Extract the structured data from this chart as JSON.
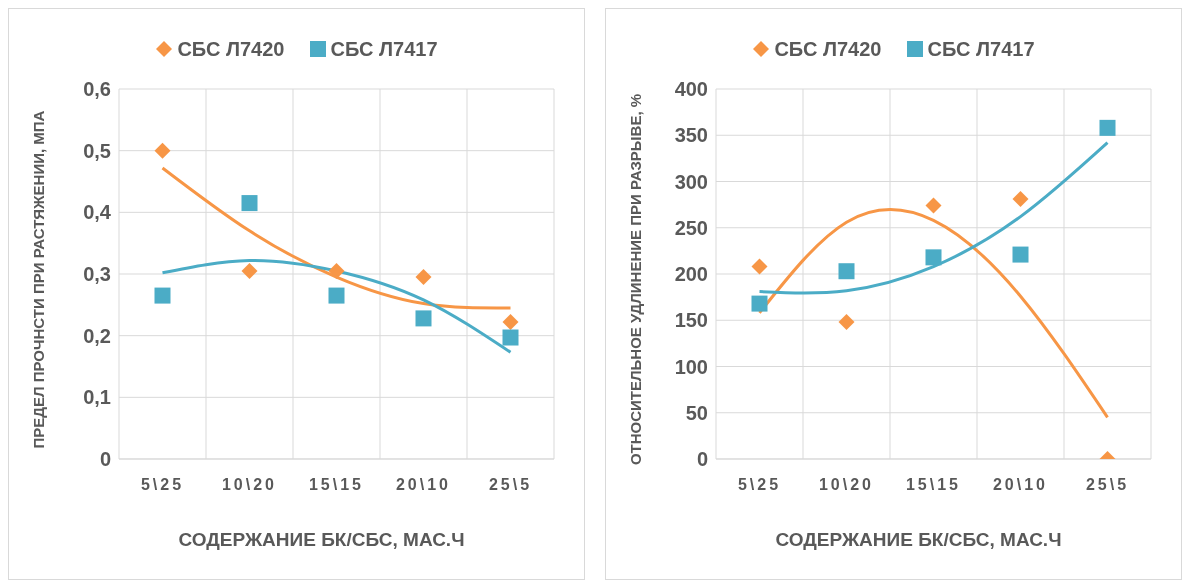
{
  "chart_data": [
    {
      "type": "scatter",
      "xlabel": "СОДЕРЖАНИЕ БК/СБС, МАС.Ч",
      "ylabel": "ПРЕДЕЛ ПРОЧНСТИ ПРИ РАСТЯЖЕНИИ, МПА",
      "categories": [
        "5\\25",
        "10\\20",
        "15\\15",
        "20\\10",
        "25\\5"
      ],
      "ylim": [
        0,
        0.6
      ],
      "yticks": [
        {
          "value": 0,
          "label": "0"
        },
        {
          "value": 0.1,
          "label": "0,1"
        },
        {
          "value": 0.2,
          "label": "0,2"
        },
        {
          "value": 0.3,
          "label": "0,3"
        },
        {
          "value": 0.4,
          "label": "0,4"
        },
        {
          "value": 0.5,
          "label": "0,5"
        },
        {
          "value": 0.6,
          "label": "0,6"
        }
      ],
      "grid": true,
      "legend": "top",
      "series": [
        {
          "name": "СБС Л7420",
          "color": "#f79646",
          "marker": "diamond",
          "values": [
            0.5,
            0.305,
            0.305,
            0.295,
            0.222
          ]
        },
        {
          "name": "СБС Л7417",
          "color": "#4bacc6",
          "marker": "square",
          "values": [
            0.265,
            0.415,
            0.265,
            0.228,
            0.197
          ]
        },
        {
          "type": "line",
          "color": "#f79646",
          "marker": "none",
          "values": [
            0.472,
            0.37,
            0.295,
            0.252,
            0.245
          ]
        },
        {
          "type": "line",
          "color": "#4bacc6",
          "marker": "none",
          "values": [
            0.302,
            0.322,
            0.305,
            0.258,
            0.173
          ]
        }
      ]
    },
    {
      "type": "scatter",
      "xlabel": "СОДЕРЖАНИЕ БК/СБС, МАС.Ч",
      "ylabel": "ОТНОСИТЕЛЬНОЕ УДЛИНЕНИЕ ПРИ РАЗРЫВЕ, %",
      "categories": [
        "5\\25",
        "10\\20",
        "15\\15",
        "20\\10",
        "25\\5"
      ],
      "ylim": [
        0,
        400
      ],
      "yticks": [
        0,
        50,
        100,
        150,
        200,
        250,
        300,
        350,
        400
      ],
      "grid": true,
      "legend": "top",
      "series": [
        {
          "name": "СБС Л7420",
          "color": "#f79646",
          "marker": "diamond",
          "values": [
            208,
            148,
            274,
            281,
            0
          ]
        },
        {
          "name": "СБС Л7417",
          "color": "#4bacc6",
          "marker": "square",
          "values": [
            168,
            203,
            218,
            221,
            358
          ]
        },
        {
          "type": "line",
          "color": "#f79646",
          "marker": "none",
          "values": [
            158,
            256,
            258,
            176,
            45
          ]
        },
        {
          "type": "line",
          "color": "#4bacc6",
          "marker": "none",
          "values": [
            181,
            182,
            208,
            262,
            342
          ]
        }
      ]
    }
  ]
}
